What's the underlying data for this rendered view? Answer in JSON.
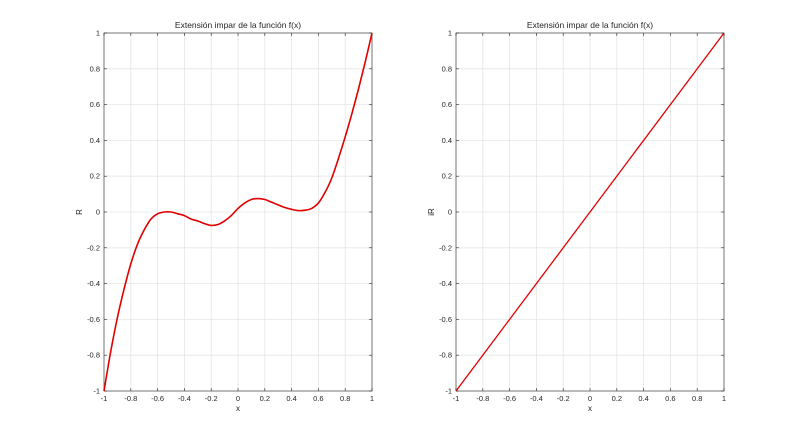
{
  "chart_data": [
    {
      "type": "line",
      "title": "Extensión impar de la función f(x)",
      "xlabel": "x",
      "ylabel": "R",
      "xlim": [
        -1,
        1
      ],
      "ylim": [
        -1,
        1
      ],
      "grid": true,
      "xticks": [
        "-1",
        "-0.8",
        "-0.6",
        "-0.4",
        "-0.2",
        "0",
        "0.2",
        "0.4",
        "0.6",
        "0.8",
        "1"
      ],
      "yticks": [
        "-1",
        "-0.8",
        "-0.6",
        "-0.4",
        "-0.2",
        "0",
        "0.2",
        "0.4",
        "0.6",
        "0.8",
        "1"
      ],
      "series": [
        {
          "color": "#e00000",
          "x": [
            -1,
            -0.95,
            -0.9,
            -0.85,
            -0.8,
            -0.75,
            -0.7,
            -0.65,
            -0.6,
            -0.55,
            -0.5,
            -0.45,
            -0.4,
            -0.35,
            -0.3,
            -0.25,
            -0.2,
            -0.15,
            -0.1,
            -0.05,
            0,
            0.05,
            0.1,
            0.15,
            0.2,
            0.25,
            0.3,
            0.35,
            0.4,
            0.45,
            0.5,
            0.55,
            0.6,
            0.65,
            0.7,
            0.75,
            0.8,
            0.85,
            0.9,
            0.95,
            1
          ],
          "y": [
            -1,
            -0.78,
            -0.59,
            -0.43,
            -0.29,
            -0.18,
            -0.1,
            -0.04,
            -0.01,
            0.0,
            0.0,
            -0.01,
            -0.02,
            -0.04,
            -0.05,
            -0.065,
            -0.075,
            -0.07,
            -0.05,
            -0.02,
            0.02,
            0.05,
            0.07,
            0.075,
            0.07,
            0.055,
            0.04,
            0.025,
            0.015,
            0.008,
            0.01,
            0.02,
            0.05,
            0.11,
            0.19,
            0.3,
            0.42,
            0.55,
            0.69,
            0.84,
            1
          ]
        }
      ]
    },
    {
      "type": "line",
      "title": "Extensión impar de la función f(x)",
      "xlabel": "x",
      "ylabel": "iR",
      "xlim": [
        -1,
        1
      ],
      "ylim": [
        -1,
        1
      ],
      "grid": true,
      "xticks": [
        "-1",
        "-0.8",
        "-0.6",
        "-0.4",
        "-0.2",
        "0",
        "0.2",
        "0.4",
        "0.6",
        "0.8",
        "1"
      ],
      "yticks": [
        "-1",
        "-0.8",
        "-0.6",
        "-0.4",
        "-0.2",
        "0",
        "0.2",
        "0.4",
        "0.6",
        "0.8",
        "1"
      ],
      "series": [
        {
          "color": "#e00000",
          "x": [
            -1,
            1
          ],
          "y": [
            -1,
            1
          ]
        }
      ]
    }
  ]
}
